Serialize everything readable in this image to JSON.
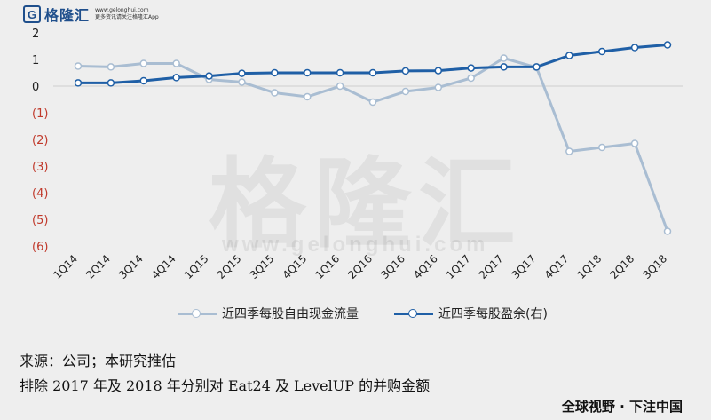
{
  "branding": {
    "logo_letter": "G",
    "logo_name": "格隆汇",
    "logo_tag": "更多资讯请关注格隆汇App",
    "logo_url": "www.gelonghui.com",
    "watermark": "格隆汇",
    "watermark_url": "www.gelonghui.com",
    "slogan": "全球视野 · 下注中国"
  },
  "footnotes": {
    "source": "来源：公司；本研究推估",
    "note": "排除 2017 年及 2018 年分别对 Eat24 及 LevelUP 的并购金额"
  },
  "chart_data": {
    "type": "line",
    "categories": [
      "1Q14",
      "2Q14",
      "3Q14",
      "4Q14",
      "1Q15",
      "2Q15",
      "3Q15",
      "4Q15",
      "1Q16",
      "2Q16",
      "3Q16",
      "4Q16",
      "1Q17",
      "2Q17",
      "3Q17",
      "4Q17",
      "1Q18",
      "2Q18",
      "3Q18"
    ],
    "y_ticks": [
      2,
      1,
      0,
      -1,
      -2,
      -3,
      -4,
      -5,
      -6
    ],
    "y_tick_labels": [
      "2",
      "1",
      "0",
      "(1)",
      "(2)",
      "(3)",
      "(4)",
      "(5)",
      "(6)"
    ],
    "ylim": [
      -6,
      2
    ],
    "negative_tick_color": "#c0392b",
    "series": [
      {
        "name": "近四季每股自由现金流量",
        "color": "#a9bdd2",
        "values": [
          0.75,
          0.72,
          0.85,
          0.85,
          0.25,
          0.15,
          -0.25,
          -0.4,
          0.0,
          -0.6,
          -0.2,
          -0.05,
          0.3,
          1.05,
          0.7,
          -2.45,
          -2.3,
          -2.15,
          -5.45
        ]
      },
      {
        "name": "近四季每股盈余(右)",
        "color": "#1f5fa6",
        "values": [
          0.12,
          0.12,
          0.2,
          0.32,
          0.38,
          0.48,
          0.5,
          0.5,
          0.5,
          0.5,
          0.57,
          0.58,
          0.68,
          0.72,
          0.72,
          1.15,
          1.3,
          1.45,
          1.55
        ]
      }
    ],
    "gridlines": true,
    "legend": "bottom"
  }
}
